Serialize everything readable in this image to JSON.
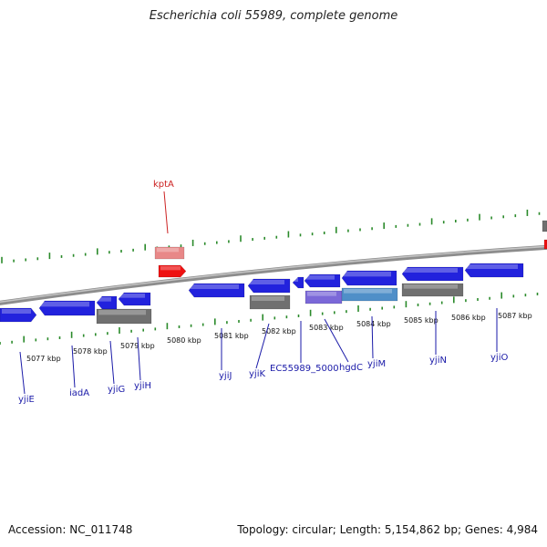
{
  "header": {
    "title": "Escherichia coli 55989, complete genome"
  },
  "footer": {
    "accession": "Accession: NC_011748",
    "summary": "Topology: circular; Length: 5,154,862 bp; Genes: 4,984"
  },
  "colors": {
    "forward_gene": "#1010e0",
    "forward_gene_light": "#5a5aff",
    "reverse_gene": "#2222dd",
    "pseudo_gray": "#707070",
    "highlight_red": "#ee1111",
    "highlight_pink": "#e88888",
    "purple_gene": "#7b68d8",
    "steelblue_gene": "#4f8fc8",
    "backbone": "#8c8c8c",
    "tick_green": "#2a8a2a",
    "label_blue": "#1a1aa8",
    "label_red": "#cc2222"
  },
  "scale_labels": [
    "5077 kbp",
    "5078 kbp",
    "5079 kbp",
    "5080 kbp",
    "5081 kbp",
    "5082 kbp",
    "5083 kbp",
    "5084 kbp",
    "5085 kbp",
    "5086 kbp",
    "5087 kbp"
  ],
  "gene_labels": [
    {
      "text": "kptA",
      "color": "label_red"
    },
    {
      "text": "yjiE",
      "color": "label_blue"
    },
    {
      "text": "iadA",
      "color": "label_blue"
    },
    {
      "text": "yjiG",
      "color": "label_blue"
    },
    {
      "text": "yjiH",
      "color": "label_blue"
    },
    {
      "text": "yjiJ",
      "color": "label_blue"
    },
    {
      "text": "yjiK",
      "color": "label_blue"
    },
    {
      "text": "EC55989_5000",
      "color": "label_blue"
    },
    {
      "text": "hgdC",
      "color": "label_blue"
    },
    {
      "text": "yjiM",
      "color": "label_blue"
    },
    {
      "text": "yjiN",
      "color": "label_blue"
    },
    {
      "text": "yjiO",
      "color": "label_blue"
    }
  ]
}
